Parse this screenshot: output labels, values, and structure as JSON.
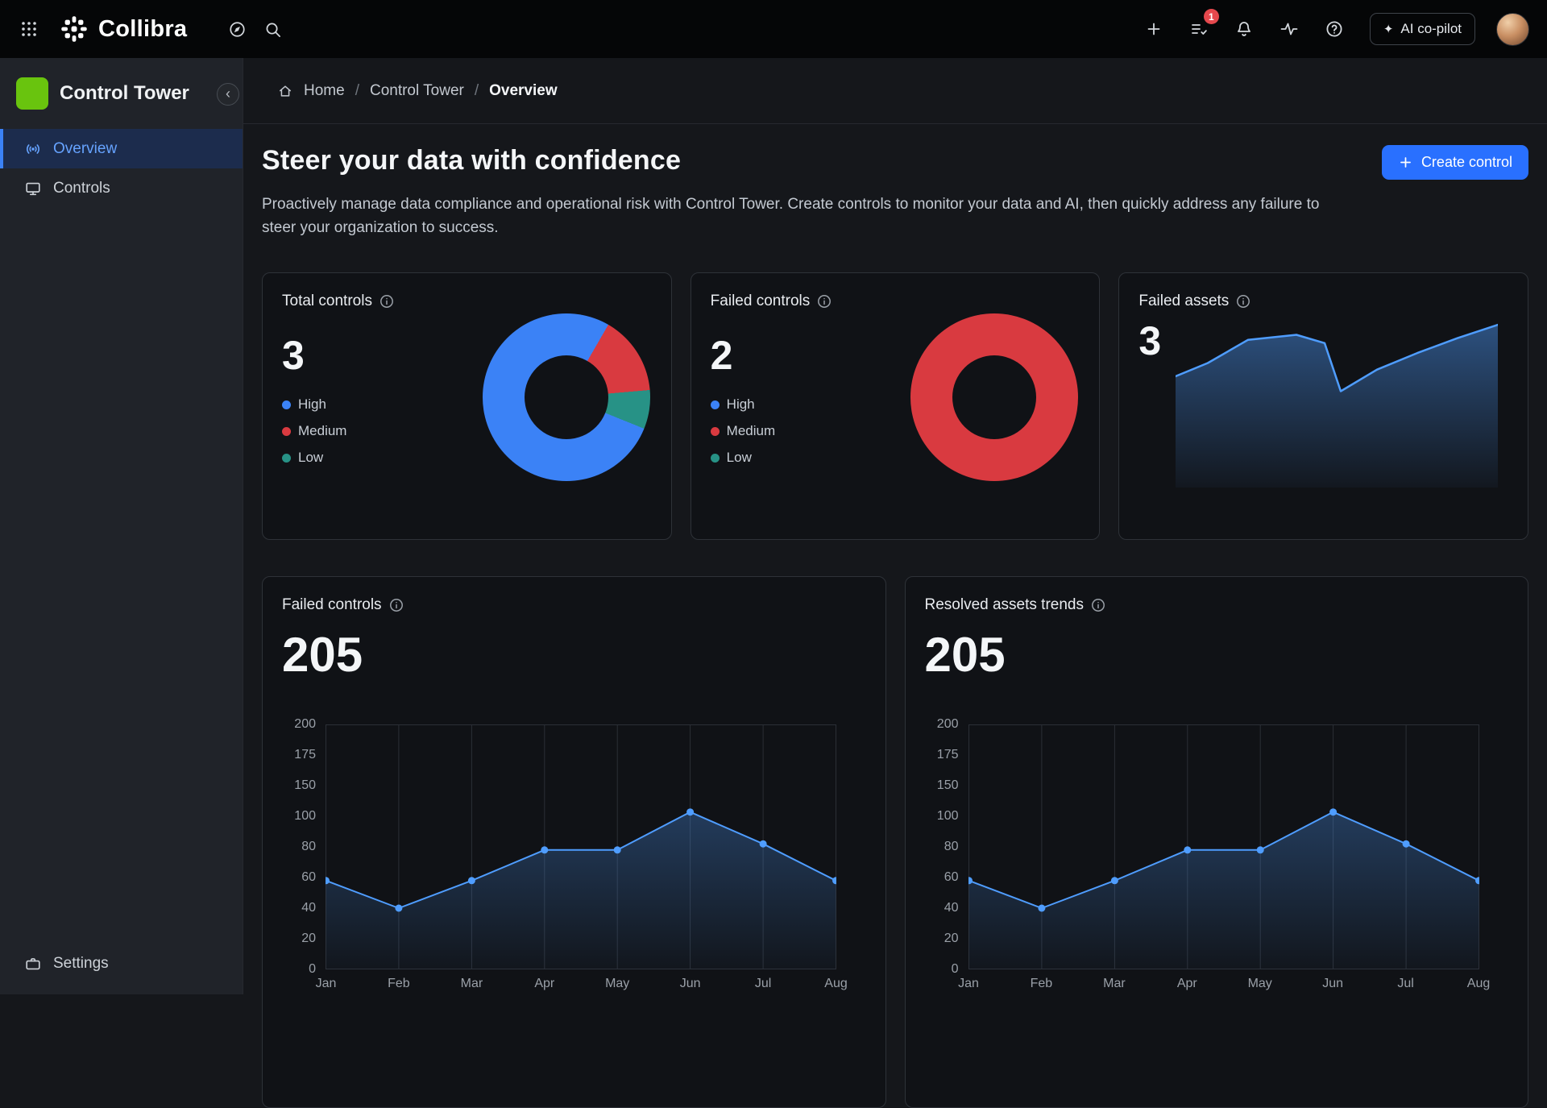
{
  "colors": {
    "high": "#3b82f6",
    "medium": "#d93a40",
    "low": "#279286",
    "accent": "#2970ff",
    "line": "#4f9dff"
  },
  "topbar": {
    "brand": "Collibra",
    "badge_count": "1",
    "ai_copilot": "AI co-pilot"
  },
  "sidebar": {
    "workspace": "Control Tower",
    "items": [
      {
        "label": "Overview"
      },
      {
        "label": "Controls"
      }
    ],
    "settings": "Settings"
  },
  "breadcrumb": {
    "separator": "/",
    "items": [
      "Home",
      "Control Tower",
      "Overview"
    ]
  },
  "hero": {
    "title": "Steer your data with confidence",
    "description": "Proactively manage data compliance and operational risk with Control Tower. Create controls to monitor your data and AI, then quickly address any failure to steer your organization to success.",
    "create_button": "Create control",
    "plus": "+"
  },
  "legend": [
    "High",
    "Medium",
    "Low"
  ],
  "cards": {
    "total_controls": {
      "title": "Total controls",
      "value": "3"
    },
    "failed_controls": {
      "title": "Failed controls",
      "value": "2"
    },
    "failed_assets": {
      "title": "Failed assets",
      "value": "3"
    },
    "failed_controls_trend": {
      "title": "Failed controls",
      "value": "205"
    },
    "resolved_assets_trend": {
      "title": "Resolved assets trends",
      "value": "205"
    }
  },
  "chart_data": [
    {
      "id": "total-controls-donut",
      "type": "pie",
      "title": "Total controls",
      "labels": [
        "High",
        "Medium",
        "Low"
      ],
      "values_pct": [
        77,
        15,
        8
      ],
      "segments": [
        {
          "color": "high",
          "from": 0,
          "to": 30
        },
        {
          "color": "medium",
          "from": 30,
          "to": 85
        },
        {
          "color": "low",
          "from": 85,
          "to": 112
        },
        {
          "color": "high",
          "from": 112,
          "to": 360
        }
      ]
    },
    {
      "id": "failed-controls-donut",
      "type": "pie",
      "title": "Failed controls",
      "labels": [
        "Medium"
      ],
      "values_pct": [
        100
      ],
      "segments": [
        {
          "color": "medium",
          "from": 0,
          "to": 360
        }
      ]
    },
    {
      "id": "failed-assets-area",
      "type": "area",
      "title": "Failed assets",
      "xmax": 400,
      "ymax": 200,
      "points": [
        [
          0,
          66
        ],
        [
          40,
          50
        ],
        [
          90,
          22
        ],
        [
          150,
          16
        ],
        [
          185,
          26
        ],
        [
          205,
          84
        ],
        [
          250,
          58
        ],
        [
          300,
          38
        ],
        [
          350,
          20
        ],
        [
          400,
          4
        ]
      ]
    },
    {
      "id": "failed-controls-line",
      "type": "line",
      "title": "Failed controls",
      "x": [
        "Jan",
        "Feb",
        "Mar",
        "Apr",
        "May",
        "Jun",
        "Jul",
        "Aug"
      ],
      "values": [
        58,
        40,
        58,
        78,
        78,
        107,
        82,
        58
      ],
      "yticks": [
        0,
        20,
        40,
        60,
        80,
        100,
        150,
        175,
        200
      ],
      "ylim": [
        0,
        200
      ],
      "grid": "vertical",
      "legend": "none"
    },
    {
      "id": "resolved-assets-line",
      "type": "line",
      "title": "Resolved assets trends",
      "x": [
        "Jan",
        "Feb",
        "Mar",
        "Apr",
        "May",
        "Jun",
        "Jul",
        "Aug"
      ],
      "values": [
        58,
        40,
        58,
        78,
        78,
        107,
        82,
        58
      ],
      "yticks": [
        0,
        20,
        40,
        60,
        80,
        100,
        150,
        175,
        200
      ],
      "ylim": [
        0,
        200
      ],
      "grid": "vertical",
      "legend": "none"
    }
  ]
}
